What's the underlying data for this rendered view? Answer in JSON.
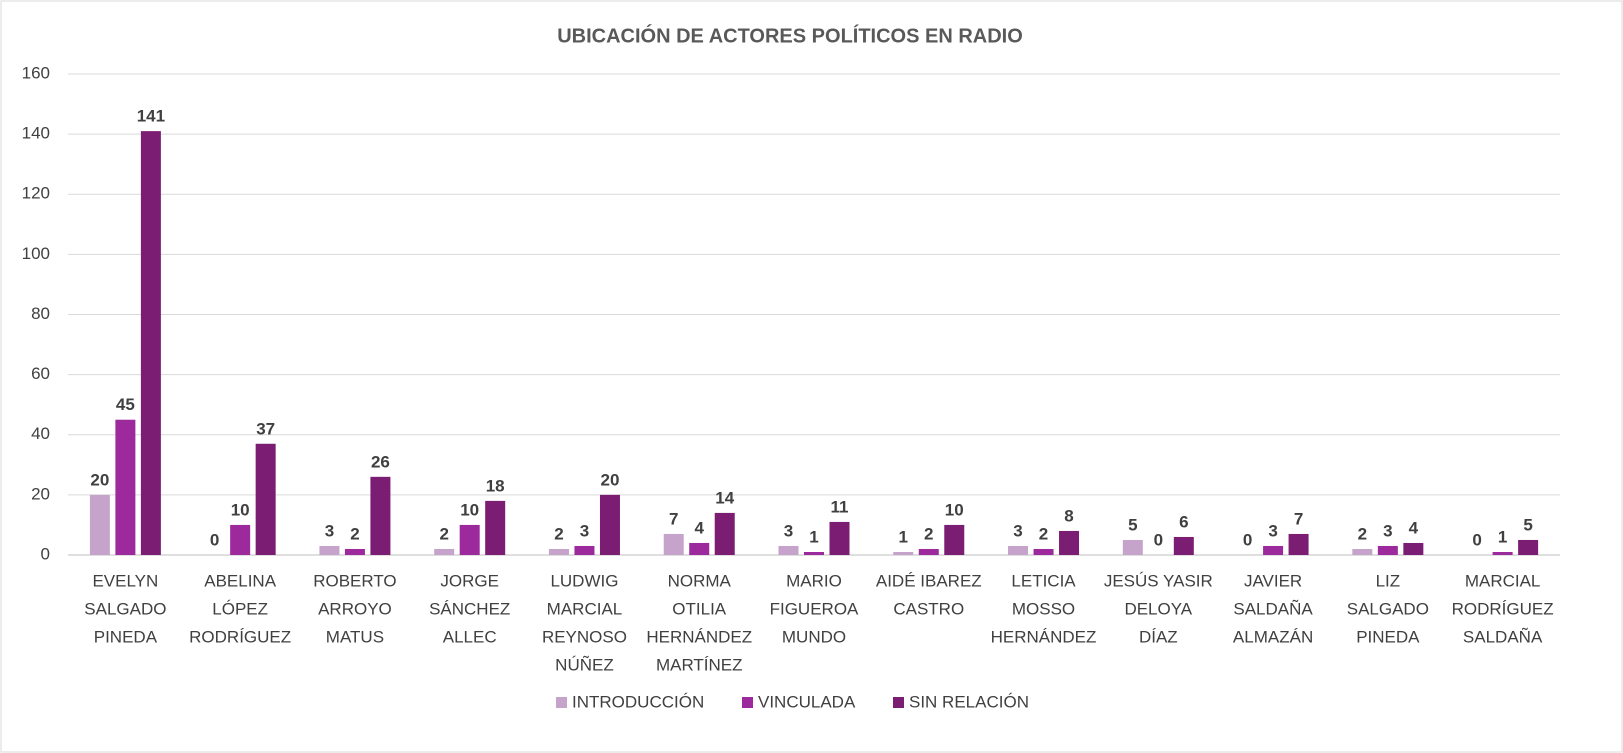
{
  "chart_data": {
    "type": "bar",
    "title": "UBICACIÓN DE ACTORES POLÍTICOS EN RADIO",
    "categories": [
      [
        "EVELYN",
        "SALGADO",
        "PINEDA"
      ],
      [
        "ABELINA",
        "LÓPEZ",
        "RODRÍGUEZ"
      ],
      [
        "ROBERTO",
        "ARROYO",
        "MATUS"
      ],
      [
        "JORGE",
        "SÁNCHEZ",
        "ALLEC"
      ],
      [
        "LUDWIG",
        "MARCIAL",
        "REYNOSO",
        "NÚÑEZ"
      ],
      [
        "NORMA",
        "OTILIA",
        "HERNÁNDEZ",
        "MARTÍNEZ"
      ],
      [
        "MARIO",
        "FIGUEROA",
        "MUNDO"
      ],
      [
        "AIDÉ IBAREZ",
        "CASTRO"
      ],
      [
        "LETICIA",
        "MOSSO",
        "HERNÁNDEZ"
      ],
      [
        "JESÚS YASIR",
        "DELOYA",
        "DÍAZ"
      ],
      [
        "JAVIER",
        "SALDAÑA",
        "ALMAZÁN"
      ],
      [
        "LIZ",
        "SALGADO",
        "PINEDA"
      ],
      [
        "MARCIAL",
        "RODRÍGUEZ",
        "SALDAÑA"
      ]
    ],
    "series": [
      {
        "name": "INTRODUCCIÓN",
        "color": "#c5a3cb",
        "values": [
          20,
          0,
          3,
          2,
          2,
          7,
          3,
          1,
          3,
          5,
          0,
          2,
          0
        ]
      },
      {
        "name": "VINCULADA",
        "color": "#9c2a9d",
        "values": [
          45,
          10,
          2,
          10,
          3,
          4,
          1,
          2,
          2,
          0,
          3,
          3,
          1
        ]
      },
      {
        "name": "SIN RELACIÓN",
        "color": "#7a1d73",
        "values": [
          141,
          37,
          26,
          18,
          20,
          14,
          11,
          10,
          8,
          6,
          7,
          4,
          5
        ]
      }
    ],
    "ylim": [
      0,
      160
    ],
    "yticks": [
      0,
      20,
      40,
      60,
      80,
      100,
      120,
      140,
      160
    ],
    "grid": true,
    "legend": "bottom"
  }
}
